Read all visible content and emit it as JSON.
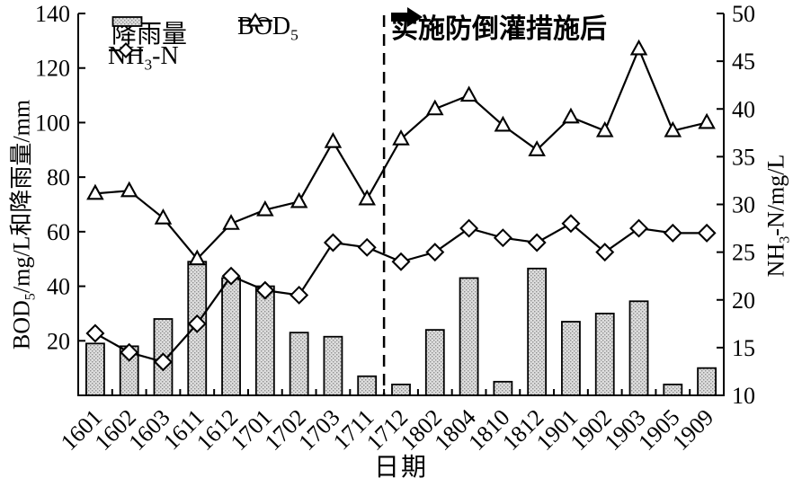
{
  "figure": {
    "xlabel": "日期",
    "left_axis": {
      "label_pre": "BOD",
      "label_sub": "5",
      "label_post": "/mg/L和降雨量/mm",
      "min": 0,
      "max": 140,
      "tick_step": 20
    },
    "right_axis": {
      "label_pre": "NH",
      "label_sub": "3",
      "label_post": "-N/mg/L",
      "min": 10,
      "max": 50,
      "tick_step": 5
    },
    "legend": {
      "rain_label": "降雨量",
      "bod_pre": "BOD",
      "bod_sub": "5",
      "bod_post": "",
      "nh_pre": "NH",
      "nh_sub": "3",
      "nh_post": "-N"
    },
    "annotation": {
      "text": "实施防倒灌措施后",
      "divider_between": [
        "1711",
        "1712"
      ]
    }
  },
  "chart_data": {
    "type": "bar+line combo",
    "title": "",
    "xlabel": "日期",
    "ylabel_left": "BOD5/mg/L和降雨量/mm",
    "ylabel_right": "NH3-N/mg/L",
    "ylim_left": [
      0,
      140
    ],
    "ylim_right": [
      10,
      50
    ],
    "yticks_left": [
      20,
      40,
      60,
      80,
      100,
      120,
      140
    ],
    "yticks_right": [
      10,
      15,
      20,
      25,
      30,
      35,
      40,
      45,
      50
    ],
    "grid": false,
    "legend_position": "top-left inside",
    "categories": [
      "1601",
      "1602",
      "1603",
      "1611",
      "1612",
      "1701",
      "1702",
      "1703",
      "1711",
      "1712",
      "1802",
      "1804",
      "1810",
      "1812",
      "1901",
      "1902",
      "1903",
      "1905",
      "1909"
    ],
    "series": [
      {
        "name": "降雨量",
        "type": "bar",
        "axis": "left",
        "unit": "mm",
        "values": [
          19,
          18,
          28,
          49,
          43,
          40,
          23,
          21.5,
          7,
          4,
          24,
          43,
          5,
          46.5,
          27,
          30,
          34.5,
          4,
          10
        ]
      },
      {
        "name": "BOD5",
        "type": "line",
        "marker": "triangle",
        "axis": "left",
        "unit": "mg/L",
        "values": [
          74,
          75,
          65,
          50,
          63,
          68,
          71,
          93,
          72,
          94,
          105,
          110,
          99,
          90,
          102,
          97,
          127,
          97,
          100
        ]
      },
      {
        "name": "NH3-N",
        "type": "line",
        "marker": "diamond",
        "axis": "right",
        "unit": "mg/L",
        "values": [
          16.5,
          14.5,
          13.5,
          17.5,
          22.5,
          21,
          20.5,
          26,
          25.5,
          24,
          25,
          27.5,
          26.5,
          26,
          28,
          25,
          27.5,
          27,
          27
        ]
      }
    ],
    "divider_after_index": 8,
    "colors": {
      "line": "#000000",
      "marker_fill": "#ffffff",
      "bar_fill": "#dedede",
      "bar_dot": "#8f8f8f",
      "bar_edge": "#000000",
      "axis": "#000000",
      "background": "#ffffff"
    }
  }
}
